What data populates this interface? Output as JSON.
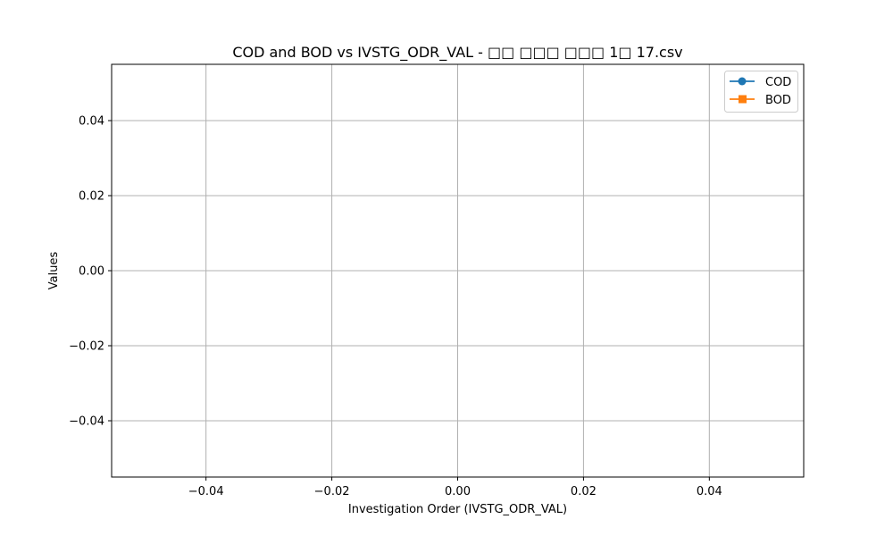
{
  "chart_data": {
    "type": "line",
    "title": "COD and BOD vs IVSTG_ODR_VAL -  □□ □□□ □□□ 1□ 17.csv",
    "xlabel": "Investigation Order (IVSTG_ODR_VAL)",
    "ylabel": "Values",
    "xlim": [
      -0.055,
      0.055
    ],
    "ylim": [
      -0.055,
      0.055
    ],
    "xticks": [
      -0.04,
      -0.02,
      0.0,
      0.02,
      0.04
    ],
    "xtick_labels": [
      "−0.04",
      "−0.02",
      "0.00",
      "0.02",
      "0.04"
    ],
    "yticks": [
      -0.04,
      -0.02,
      0.0,
      0.02,
      0.04
    ],
    "ytick_labels": [
      "−0.04",
      "−0.02",
      "0.00",
      "0.02",
      "0.04"
    ],
    "grid": true,
    "legend_position": "top-right",
    "series": [
      {
        "name": "COD",
        "x": [],
        "y": [],
        "color": "#1f77b4",
        "marker": "circle"
      },
      {
        "name": "BOD",
        "x": [],
        "y": [],
        "color": "#ff7f0e",
        "marker": "square"
      }
    ]
  }
}
